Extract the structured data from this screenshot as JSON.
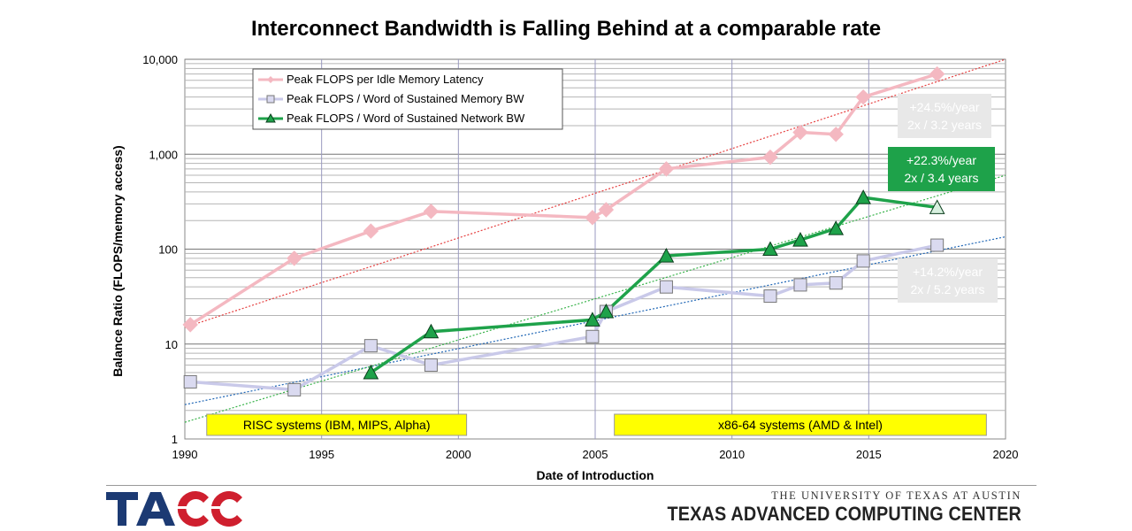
{
  "chart_data": {
    "type": "line",
    "title": "Interconnect Bandwidth is Falling Behind at a comparable rate",
    "xlabel": "Date of Introduction",
    "ylabel": "Balance Ratio (FLOPS/memory access)",
    "xlim": [
      1990,
      2020
    ],
    "ylim": [
      1,
      10000
    ],
    "y_scale": "log",
    "grid": true,
    "x_ticks": [
      "1990",
      "1995",
      "2000",
      "2005",
      "2010",
      "2015",
      "2020"
    ],
    "y_ticks": [
      "1",
      "10",
      "100",
      "1,000",
      "10,000"
    ],
    "legend_position": "top-left",
    "series": [
      {
        "name": "Peak FLOPS per Idle Memory Latency",
        "color": "#f4b8c1",
        "marker": "diamond",
        "x": [
          1990.2,
          1994,
          1996.8,
          1999,
          2004.9,
          2005.4,
          2007.6,
          2011.4,
          2012.5,
          2013.8,
          2014.8,
          2017.5
        ],
        "y": [
          16,
          80,
          155,
          250,
          215,
          260,
          700,
          930,
          1700,
          1620,
          4000,
          7000
        ]
      },
      {
        "name": "Peak FLOPS / Word of Sustained Memory BW",
        "color": "#c9c9e9",
        "marker": "square",
        "x": [
          1990.2,
          1994,
          1996.8,
          1999,
          2004.9,
          2005.4,
          2007.6,
          2011.4,
          2012.5,
          2013.8,
          2014.8,
          2017.5
        ],
        "y": [
          4,
          3.3,
          9.6,
          6,
          12,
          22,
          40,
          32,
          42,
          44,
          75,
          110
        ]
      },
      {
        "name": "Peak FLOPS / Word of Sustained Network BW",
        "color": "#1ea24a",
        "marker": "triangle",
        "x": [
          1996.8,
          1999,
          2004.9,
          2005.4,
          2007.6,
          2011.4,
          2012.5,
          2013.8,
          2014.8,
          2017.5
        ],
        "y": [
          5,
          13.5,
          18,
          22,
          85,
          100,
          125,
          165,
          350,
          275
        ]
      }
    ],
    "trendlines": [
      {
        "color": "#e64040",
        "x": [
          1990,
          2020
        ],
        "y": [
          15,
          10000
        ]
      },
      {
        "color": "#1f66b5",
        "x": [
          1990,
          2020
        ],
        "y": [
          2.3,
          135
        ]
      },
      {
        "color": "#38b34a",
        "x": [
          1990,
          2020
        ],
        "y": [
          1.5,
          600
        ]
      }
    ],
    "annotations": [
      {
        "lines": [
          "+24.5%/year",
          "2x / 3.2 years"
        ],
        "bg": "#e8e8e8",
        "fg": "#ffffff"
      },
      {
        "lines": [
          "+22.3%/year",
          "2x / 3.4 years"
        ],
        "bg": "#1ea24a",
        "fg": "#ffffff"
      },
      {
        "lines": [
          "+14.2%/year",
          "2x / 5.2 years"
        ],
        "bg": "#e8e8e8",
        "fg": "#ffffff"
      }
    ],
    "bands": [
      {
        "label": "RISC systems (IBM, MIPS, Alpha)",
        "x_start": 1990.8,
        "x_end": 2000.3,
        "color": "#ffff00"
      },
      {
        "label": "x86-64 systems (AMD & Intel)",
        "x_start": 2005.7,
        "x_end": 2019.3,
        "color": "#ffff00"
      }
    ]
  },
  "footer": {
    "logo_text": "TACC",
    "university": "THE UNIVERSITY OF TEXAS AT AUSTIN",
    "center": "TEXAS ADVANCED COMPUTING CENTER"
  }
}
